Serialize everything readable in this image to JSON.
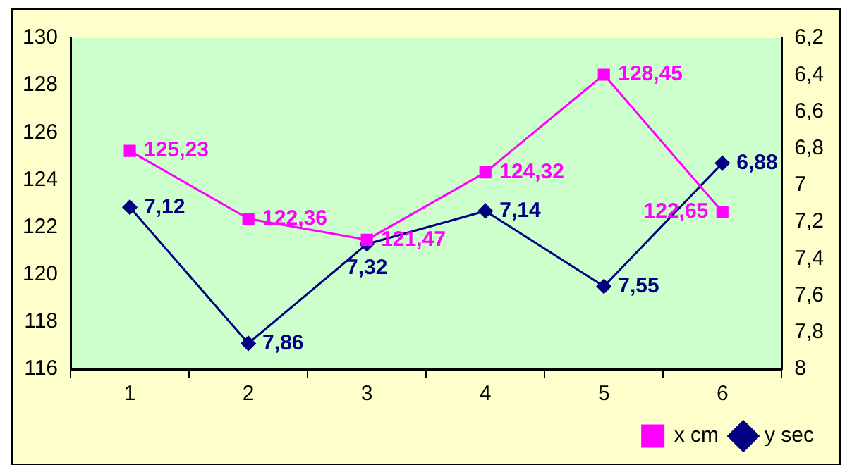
{
  "chart_data": {
    "type": "line",
    "categories": [
      "1",
      "2",
      "3",
      "4",
      "5",
      "6"
    ],
    "series": [
      {
        "name": "x cm",
        "color": "#ff00ff",
        "marker": "square",
        "values": [
          125.23,
          122.36,
          121.47,
          124.32,
          128.45,
          122.65
        ],
        "value_labels": [
          "125,23",
          "122,36",
          "121,47",
          "124,32",
          "128,45",
          "122,65"
        ]
      },
      {
        "name": "y sec",
        "color": "#000080",
        "marker": "diamond",
        "axis": "y2",
        "values": [
          7.12,
          7.86,
          7.32,
          7.14,
          7.55,
          6.88
        ],
        "value_labels": [
          "7,12",
          "7,86",
          "7,32",
          "7,14",
          "7,55",
          "6,88"
        ]
      }
    ],
    "ylim": [
      116,
      130
    ],
    "yticks": [
      116,
      118,
      120,
      122,
      124,
      126,
      128,
      130
    ],
    "y2lim": [
      8,
      6.2
    ],
    "y2ticks": [
      {
        "value": 6.2,
        "label": "6,2"
      },
      {
        "value": 6.4,
        "label": "6,4"
      },
      {
        "value": 6.6,
        "label": "6,6"
      },
      {
        "value": 6.8,
        "label": "6,8"
      },
      7,
      {
        "value": 7.2,
        "label": "7,2"
      },
      {
        "value": 7.4,
        "label": "7,4"
      },
      {
        "value": 7.6,
        "label": "7,6"
      },
      {
        "value": 7.8,
        "label": "7,8"
      },
      8
    ],
    "grid": false,
    "legend": "bottom right"
  }
}
